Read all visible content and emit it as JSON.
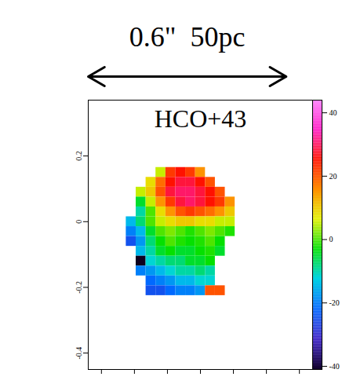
{
  "chart_data": {
    "type": "heatmap",
    "title": "0.6\"  50pc",
    "label": "HCO+43",
    "scale_bar": {
      "length": 0.6
    },
    "x": [
      -0.21,
      -0.18,
      -0.15,
      -0.12,
      -0.09,
      -0.06,
      -0.03,
      0,
      0.03,
      0.06,
      0.09
    ],
    "y": [
      0.15,
      0.12,
      0.09,
      0.06,
      0.03,
      0,
      -0.03,
      -0.06,
      -0.09,
      -0.12,
      -0.15,
      -0.18,
      -0.21
    ],
    "values": [
      [
        null,
        null,
        null,
        5,
        22,
        25,
        22,
        15,
        null,
        null,
        null
      ],
      [
        null,
        null,
        8,
        18,
        25,
        28,
        28,
        25,
        20,
        null,
        null
      ],
      [
        null,
        5,
        10,
        20,
        28,
        30,
        30,
        28,
        25,
        20,
        null
      ],
      [
        null,
        -5,
        5,
        15,
        22,
        28,
        30,
        28,
        25,
        22,
        15
      ],
      [
        null,
        -10,
        0,
        8,
        15,
        20,
        22,
        20,
        18,
        15,
        10
      ],
      [
        -15,
        -8,
        0,
        5,
        8,
        10,
        10,
        8,
        8,
        5,
        5
      ],
      [
        -20,
        -15,
        -5,
        0,
        2,
        0,
        -2,
        0,
        2,
        0,
        -2
      ],
      [
        -25,
        -18,
        -8,
        -3,
        0,
        -2,
        -3,
        -2,
        0,
        -3,
        null
      ],
      [
        null,
        -15,
        -10,
        -5,
        -3,
        -5,
        -5,
        -3,
        -2,
        -5,
        null
      ],
      [
        null,
        -42,
        -12,
        -10,
        -8,
        -8,
        -5,
        -5,
        -3,
        null,
        null
      ],
      [
        null,
        -20,
        -18,
        -15,
        -12,
        -10,
        -10,
        -8,
        -10,
        null,
        null
      ],
      [
        null,
        null,
        -22,
        -20,
        -18,
        -15,
        -15,
        -12,
        -12,
        null,
        null
      ],
      [
        null,
        null,
        -25,
        -25,
        -22,
        -20,
        -20,
        -18,
        20,
        20,
        null
      ]
    ],
    "xlim": [
      -0.34,
      0.34
    ],
    "ylim": [
      -0.45,
      0.37
    ],
    "xticks": [
      -0.3,
      -0.2,
      -0.1,
      0,
      0.1,
      0.2,
      0.3
    ],
    "yticks": [
      0.2,
      0,
      -0.2,
      -0.4
    ],
    "tick_labels": "y",
    "colorbar": {
      "range": [
        -41,
        44
      ],
      "ticks": [
        40,
        20,
        0,
        -20,
        -40
      ]
    }
  }
}
